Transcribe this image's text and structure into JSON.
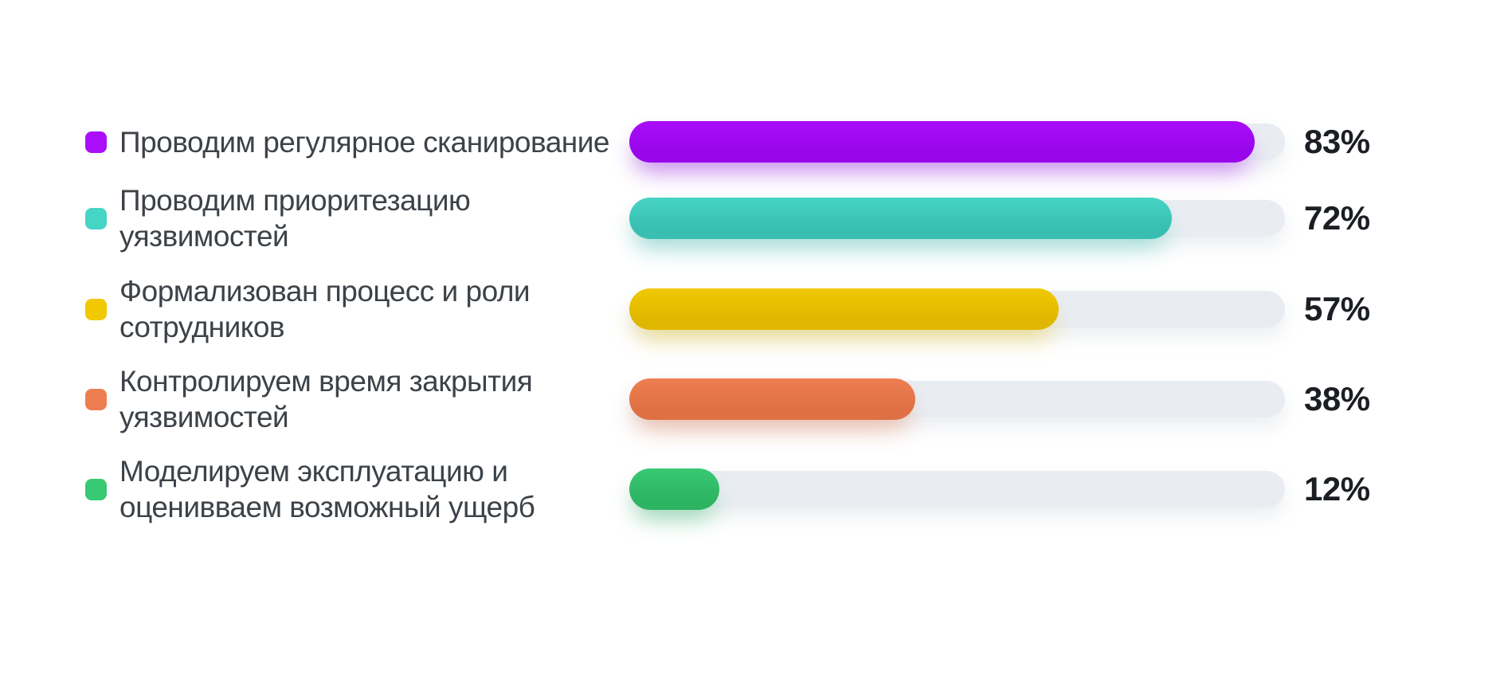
{
  "chart_data": {
    "type": "bar",
    "orientation": "horizontal",
    "title": "",
    "unit": "%",
    "grid": false,
    "legend_position": "left-of-bars",
    "background": "#FFFFFF",
    "track_color": "#E9EDF2",
    "xlim": [
      0,
      87
    ],
    "categories": [
      "Проводим регулярное сканирование",
      "Проводим приоритезацию уязвимостей",
      "Формализован процесс и роли сотрудников",
      "Контролируем время закрытия уязвимостей",
      "Моделируем эксплуатацию и оценивваем возможный ущерб"
    ],
    "values": [
      83,
      72,
      57,
      38,
      12
    ],
    "value_labels": [
      "83%",
      "72%",
      "57%",
      "38%",
      "12%"
    ],
    "bars": [
      {
        "label_lines": [
          "Проводим регулярное сканирование"
        ],
        "value": 83,
        "value_label": "83%",
        "color": "#9905EB",
        "color_light": "#A90DF9"
      },
      {
        "label_lines": [
          "Проводим приоритезацию",
          "уязвимостей"
        ],
        "value": 72,
        "value_label": "72%",
        "color": "#38BFB1",
        "color_light": "#46D4C5"
      },
      {
        "label_lines": [
          "Формализован процесс и роли",
          "сотрудников"
        ],
        "value": 57,
        "value_label": "57%",
        "color": "#E0B700",
        "color_light": "#F0C902"
      },
      {
        "label_lines": [
          "Контролируем время закрытия",
          "уязвимостей"
        ],
        "value": 38,
        "value_label": "38%",
        "color": "#DE7044",
        "color_light": "#EE7E51"
      },
      {
        "label_lines": [
          "Моделируем эксплуатацию и",
          "оценивваем возможный ущерб"
        ],
        "value": 12,
        "value_label": "12%",
        "color": "#2DB462",
        "color_light": "#38C974"
      }
    ]
  }
}
